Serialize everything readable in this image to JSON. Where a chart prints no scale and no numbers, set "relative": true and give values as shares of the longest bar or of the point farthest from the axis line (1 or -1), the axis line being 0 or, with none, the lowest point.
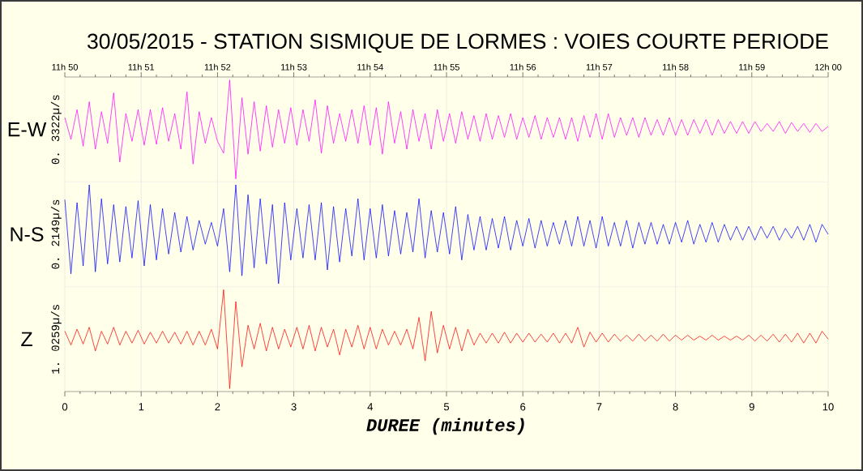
{
  "chart_data": [
    {
      "type": "line",
      "title": "30/05/2015 - STATION SISMIQUE DE LORMES : VOIES COURTE PERIODE",
      "ylabel": "0. 3322µ/s",
      "relative": true,
      "x": [
        0,
        0.08,
        0.16,
        0.24,
        0.32,
        0.4,
        0.48,
        0.56,
        0.64,
        0.72,
        0.8,
        0.88,
        0.96,
        1.04,
        1.12,
        1.2,
        1.28,
        1.36,
        1.44,
        1.52,
        1.6,
        1.68,
        1.76,
        1.84,
        1.92,
        2,
        2.08,
        2.16,
        2.24,
        2.32,
        2.4,
        2.48,
        2.56,
        2.64,
        2.72,
        2.8,
        2.88,
        2.96,
        3.04,
        3.12,
        3.2,
        3.28,
        3.36,
        3.44,
        3.52,
        3.6,
        3.68,
        3.76,
        3.84,
        3.92,
        4,
        4.08,
        4.16,
        4.24,
        4.32,
        4.4,
        4.48,
        4.56,
        4.64,
        4.72,
        4.8,
        4.88,
        4.96,
        5.04,
        5.12,
        5.2,
        5.28,
        5.36,
        5.44,
        5.52,
        5.6,
        5.68,
        5.76,
        5.84,
        5.92,
        6,
        6.08,
        6.16,
        6.24,
        6.32,
        6.4,
        6.48,
        6.56,
        6.64,
        6.72,
        6.8,
        6.88,
        6.96,
        7.04,
        7.12,
        7.2,
        7.28,
        7.36,
        7.44,
        7.52,
        7.6,
        7.68,
        7.76,
        7.84,
        7.92,
        8,
        8.08,
        8.16,
        8.24,
        8.32,
        8.4,
        8.48,
        8.56,
        8.64,
        8.72,
        8.8,
        8.88,
        8.96,
        9.04,
        9.12,
        9.2,
        9.28,
        9.36,
        9.44,
        9.52,
        9.6,
        9.68,
        9.76,
        9.84,
        9.92,
        10
      ],
      "xlim": [
        0,
        10
      ],
      "xticks": [
        0,
        1,
        2,
        3,
        4,
        5,
        6,
        7,
        8,
        9,
        10
      ],
      "x2lim": [
        "2015-05-30T11:50",
        "2015-05-30T12:00"
      ],
      "x2ticks": [
        {
          "value": "2015-05-30T11:50",
          "label": "11h 50"
        },
        {
          "value": "2015-05-30T11:51",
          "label": "11h 51"
        },
        {
          "value": "2015-05-30T11:52",
          "label": "11h 52"
        },
        {
          "value": "2015-05-30T11:53",
          "label": "11h 53"
        },
        {
          "value": "2015-05-30T11:54",
          "label": "11h 54"
        },
        {
          "value": "2015-05-30T11:55",
          "label": "11h 55"
        },
        {
          "value": "2015-05-30T11:56",
          "label": "11h 56"
        },
        {
          "value": "2015-05-30T11:57",
          "label": "11h 57"
        },
        {
          "value": "2015-05-30T11:58",
          "label": "11h 58"
        },
        {
          "value": "2015-05-30T11:59",
          "label": "11h 59"
        },
        {
          "value": "2015-05-30T12:00",
          "label": "12h 00"
        }
      ],
      "tick_labels": false,
      "grid": "x",
      "series": [
        {
          "name": "E-W",
          "color": "#ff00ff",
          "values": [
            0.62,
            0.4,
            0.7,
            0.33,
            0.78,
            0.3,
            0.68,
            0.36,
            0.87,
            0.17,
            0.66,
            0.38,
            0.7,
            0.34,
            0.7,
            0.35,
            0.72,
            0.38,
            0.66,
            0.3,
            0.88,
            0.15,
            0.68,
            0.36,
            0.62,
            0.38,
            0.26,
            1.0,
            0.0,
            0.82,
            0.25,
            0.78,
            0.28,
            0.74,
            0.32,
            0.7,
            0.36,
            0.72,
            0.34,
            0.7,
            0.38,
            0.8,
            0.26,
            0.74,
            0.36,
            0.66,
            0.38,
            0.7,
            0.36,
            0.74,
            0.34,
            0.72,
            0.25,
            0.78,
            0.36,
            0.68,
            0.3,
            0.7,
            0.38,
            0.66,
            0.3,
            0.7,
            0.38,
            0.66,
            0.36,
            0.68,
            0.4,
            0.64,
            0.38,
            0.66,
            0.4,
            0.64,
            0.42,
            0.66,
            0.4,
            0.62,
            0.42,
            0.64,
            0.4,
            0.62,
            0.42,
            0.62,
            0.4,
            0.62,
            0.38,
            0.64,
            0.42,
            0.66,
            0.4,
            0.66,
            0.42,
            0.62,
            0.44,
            0.62,
            0.42,
            0.62,
            0.44,
            0.6,
            0.44,
            0.62,
            0.44,
            0.6,
            0.44,
            0.6,
            0.46,
            0.6,
            0.44,
            0.6,
            0.46,
            0.58,
            0.46,
            0.58,
            0.46,
            0.58,
            0.48,
            0.56,
            0.48,
            0.58,
            0.46,
            0.57,
            0.48,
            0.56,
            0.47,
            0.56,
            0.48,
            0.53
          ]
        }
      ]
    },
    {
      "type": "line",
      "ylabel": "0. 2149µ/s",
      "relative": true,
      "x": [
        0,
        0.08,
        0.16,
        0.24,
        0.32,
        0.4,
        0.48,
        0.56,
        0.64,
        0.72,
        0.8,
        0.88,
        0.96,
        1.04,
        1.12,
        1.2,
        1.28,
        1.36,
        1.44,
        1.52,
        1.6,
        1.68,
        1.76,
        1.84,
        1.92,
        2,
        2.08,
        2.16,
        2.24,
        2.32,
        2.4,
        2.48,
        2.56,
        2.64,
        2.72,
        2.8,
        2.88,
        2.96,
        3.04,
        3.12,
        3.2,
        3.28,
        3.36,
        3.44,
        3.52,
        3.6,
        3.68,
        3.76,
        3.84,
        3.92,
        4,
        4.08,
        4.16,
        4.24,
        4.32,
        4.4,
        4.48,
        4.56,
        4.64,
        4.72,
        4.8,
        4.88,
        4.96,
        5.04,
        5.12,
        5.2,
        5.28,
        5.36,
        5.44,
        5.52,
        5.6,
        5.68,
        5.76,
        5.84,
        5.92,
        6,
        6.08,
        6.16,
        6.24,
        6.32,
        6.4,
        6.48,
        6.56,
        6.64,
        6.72,
        6.8,
        6.88,
        6.96,
        7.04,
        7.12,
        7.2,
        7.28,
        7.36,
        7.44,
        7.52,
        7.6,
        7.68,
        7.76,
        7.84,
        7.92,
        8,
        8.08,
        8.16,
        8.24,
        8.32,
        8.4,
        8.48,
        8.56,
        8.64,
        8.72,
        8.8,
        8.88,
        8.96,
        9.04,
        9.12,
        9.2,
        9.28,
        9.36,
        9.44,
        9.52,
        9.6,
        9.68,
        9.76,
        9.84,
        9.92,
        10
      ],
      "xlim": [
        0,
        10
      ],
      "xticks": [
        0,
        1,
        2,
        3,
        4,
        5,
        6,
        7,
        8,
        9,
        10
      ],
      "tick_labels": false,
      "grid": "x",
      "series": [
        {
          "name": "N-S",
          "color": "#0000ff",
          "values": [
            0.85,
            0.1,
            0.82,
            0.18,
            1.0,
            0.12,
            0.86,
            0.2,
            0.8,
            0.22,
            0.78,
            0.26,
            0.84,
            0.18,
            0.8,
            0.24,
            0.76,
            0.3,
            0.72,
            0.32,
            0.68,
            0.34,
            0.64,
            0.4,
            0.62,
            0.38,
            0.76,
            0.12,
            1.0,
            0.08,
            0.9,
            0.16,
            0.86,
            0.2,
            0.8,
            0.0,
            0.82,
            0.24,
            0.76,
            0.26,
            0.8,
            0.24,
            0.82,
            0.14,
            0.78,
            0.22,
            0.76,
            0.28,
            0.86,
            0.24,
            0.76,
            0.26,
            0.8,
            0.28,
            0.74,
            0.3,
            0.72,
            0.32,
            0.86,
            0.26,
            0.74,
            0.32,
            0.72,
            0.3,
            0.78,
            0.24,
            0.7,
            0.34,
            0.68,
            0.34,
            0.66,
            0.36,
            0.68,
            0.34,
            0.64,
            0.38,
            0.66,
            0.36,
            0.64,
            0.38,
            0.62,
            0.4,
            0.64,
            0.38,
            0.68,
            0.38,
            0.64,
            0.36,
            0.68,
            0.38,
            0.62,
            0.38,
            0.64,
            0.36,
            0.62,
            0.4,
            0.62,
            0.4,
            0.6,
            0.4,
            0.62,
            0.42,
            0.64,
            0.4,
            0.6,
            0.42,
            0.62,
            0.42,
            0.6,
            0.44,
            0.58,
            0.44,
            0.58,
            0.44,
            0.58,
            0.46,
            0.58,
            0.44,
            0.56,
            0.46,
            0.58,
            0.44,
            0.6,
            0.42,
            0.6,
            0.5
          ]
        }
      ]
    },
    {
      "type": "line",
      "xlabel": "DUREE (minutes)",
      "ylabel": "1. 0259µ/s",
      "relative": true,
      "x": [
        0,
        0.08,
        0.16,
        0.24,
        0.32,
        0.4,
        0.48,
        0.56,
        0.64,
        0.72,
        0.8,
        0.88,
        0.96,
        1.04,
        1.12,
        1.2,
        1.28,
        1.36,
        1.44,
        1.52,
        1.6,
        1.68,
        1.76,
        1.84,
        1.92,
        2,
        2.08,
        2.16,
        2.24,
        2.32,
        2.4,
        2.48,
        2.56,
        2.64,
        2.72,
        2.8,
        2.88,
        2.96,
        3.04,
        3.12,
        3.2,
        3.28,
        3.36,
        3.44,
        3.52,
        3.6,
        3.68,
        3.76,
        3.84,
        3.92,
        4,
        4.08,
        4.16,
        4.24,
        4.32,
        4.4,
        4.48,
        4.56,
        4.64,
        4.72,
        4.8,
        4.88,
        4.96,
        5.04,
        5.12,
        5.2,
        5.28,
        5.36,
        5.44,
        5.52,
        5.6,
        5.68,
        5.76,
        5.84,
        5.92,
        6,
        6.08,
        6.16,
        6.24,
        6.32,
        6.4,
        6.48,
        6.56,
        6.64,
        6.72,
        6.8,
        6.88,
        6.96,
        7.04,
        7.12,
        7.2,
        7.28,
        7.36,
        7.44,
        7.52,
        7.6,
        7.68,
        7.76,
        7.84,
        7.92,
        8,
        8.08,
        8.16,
        8.24,
        8.32,
        8.4,
        8.48,
        8.56,
        8.64,
        8.72,
        8.8,
        8.88,
        8.96,
        9.04,
        9.12,
        9.2,
        9.28,
        9.36,
        9.44,
        9.52,
        9.6,
        9.68,
        9.76,
        9.84,
        9.92,
        10
      ],
      "xlim": [
        0,
        10
      ],
      "xticks": [
        0,
        1,
        2,
        3,
        4,
        5,
        6,
        7,
        8,
        9,
        10
      ],
      "tick_labels": "x",
      "grid": "x",
      "series": [
        {
          "name": "Z",
          "color": "#ff0000",
          "values": [
            0.58,
            0.44,
            0.6,
            0.45,
            0.62,
            0.38,
            0.58,
            0.45,
            0.62,
            0.44,
            0.58,
            0.46,
            0.59,
            0.45,
            0.57,
            0.46,
            0.58,
            0.46,
            0.57,
            0.45,
            0.58,
            0.44,
            0.58,
            0.44,
            0.6,
            0.4,
            1.0,
            0.0,
            0.88,
            0.22,
            0.64,
            0.4,
            0.66,
            0.38,
            0.62,
            0.4,
            0.6,
            0.42,
            0.62,
            0.4,
            0.64,
            0.38,
            0.62,
            0.42,
            0.6,
            0.34,
            0.6,
            0.42,
            0.64,
            0.4,
            0.62,
            0.4,
            0.6,
            0.44,
            0.58,
            0.44,
            0.6,
            0.4,
            0.72,
            0.28,
            0.78,
            0.36,
            0.64,
            0.4,
            0.62,
            0.38,
            0.6,
            0.44,
            0.56,
            0.46,
            0.56,
            0.46,
            0.57,
            0.46,
            0.56,
            0.47,
            0.56,
            0.47,
            0.55,
            0.47,
            0.56,
            0.46,
            0.56,
            0.46,
            0.62,
            0.42,
            0.57,
            0.47,
            0.56,
            0.47,
            0.55,
            0.48,
            0.54,
            0.48,
            0.55,
            0.48,
            0.54,
            0.48,
            0.55,
            0.48,
            0.54,
            0.49,
            0.54,
            0.49,
            0.53,
            0.49,
            0.54,
            0.49,
            0.53,
            0.49,
            0.53,
            0.49,
            0.54,
            0.48,
            0.54,
            0.48,
            0.55,
            0.47,
            0.55,
            0.47,
            0.56,
            0.46,
            0.56,
            0.46,
            0.58,
            0.5
          ]
        }
      ]
    }
  ]
}
